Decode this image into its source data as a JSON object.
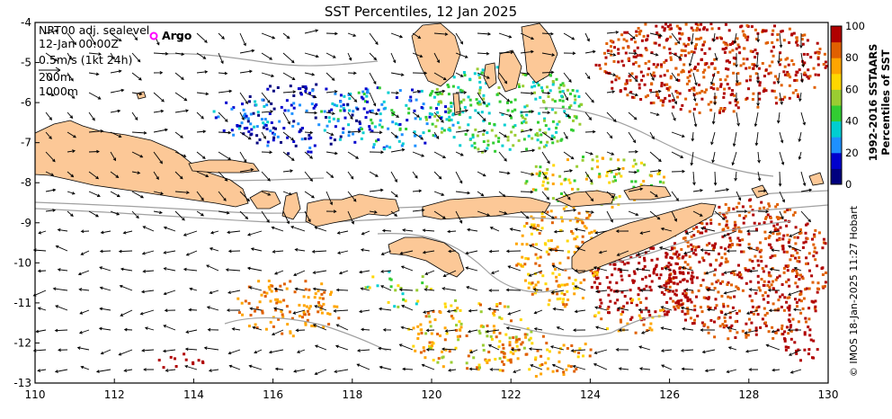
{
  "title": "SST Percentiles, 12 Jan 2025",
  "info": {
    "line1": "NRT00 adj. sealevel",
    "line2": "12-Jan 00:00Z",
    "line3": "0.5m/s (1kt 24h)",
    "line4": "200m",
    "line5": "1000m"
  },
  "argo_label": "Argo",
  "x_ticks": [
    "110",
    "112",
    "114",
    "116",
    "118",
    "120",
    "122",
    "124",
    "126",
    "128",
    "130"
  ],
  "y_ticks": [
    "-4",
    "-5",
    "-6",
    "-7",
    "-8",
    "-9",
    "-10",
    "-11",
    "-12",
    "-13"
  ],
  "colorbar": {
    "ticks": [
      "0",
      "20",
      "40",
      "60",
      "80",
      "100"
    ],
    "title1": "1992-2016 SSTAARS",
    "title2": "Percentiles of SST",
    "colors": [
      "#00007f",
      "#0000cd",
      "#1e90ff",
      "#00ced1",
      "#32cd32",
      "#9acd32",
      "#ffd700",
      "#ffa500",
      "#e06000",
      "#b00000"
    ]
  },
  "credit": "© IMOS 18-Jan-2025 11:27 Hobart",
  "colors": {
    "land": "#fcc897",
    "coast": "#000000",
    "contour": "#a0a0a0",
    "argo": "#ff00ff"
  }
}
